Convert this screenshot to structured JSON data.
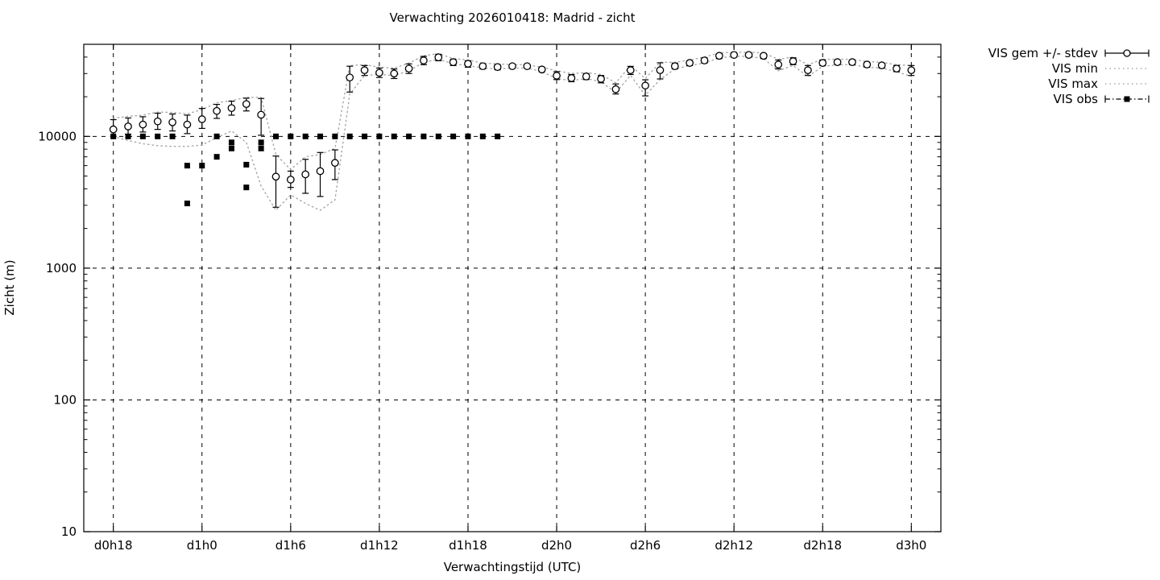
{
  "title": "Verwachting 2026010418: Madrid - zicht",
  "axes": {
    "xlabel": "Verwachtingstijd (UTC)",
    "ylabel": "Zicht (m)"
  },
  "legend": {
    "items": [
      {
        "label": "VIS gem +/- stdev",
        "sample": "errorbar-circle"
      },
      {
        "label": "VIS min",
        "sample": "dotted-line"
      },
      {
        "label": "VIS max",
        "sample": "dotted-line"
      },
      {
        "label": "VIS obs",
        "sample": "errorbar-square"
      }
    ]
  },
  "colors": {
    "foreground": "#000000",
    "minmax_dotted": "#a8a8a8",
    "background": "#ffffff"
  },
  "chart_data": {
    "type": "line",
    "title": "Verwachting 2026010418: Madrid - zicht",
    "xlabel": "Verwachtingstijd (UTC)",
    "ylabel": "Zicht (m)",
    "yscale": "log",
    "grid": true,
    "legend_position": "outside-top-right",
    "x_unit": "hours after d0h18",
    "xlim": [
      -2,
      56
    ],
    "ylim": [
      10,
      50000
    ],
    "x_ticks": [
      {
        "t": 0,
        "label": "d0h18"
      },
      {
        "t": 6,
        "label": "d1h0"
      },
      {
        "t": 12,
        "label": "d1h6"
      },
      {
        "t": 18,
        "label": "d1h12"
      },
      {
        "t": 24,
        "label": "d1h18"
      },
      {
        "t": 30,
        "label": "d2h0"
      },
      {
        "t": 36,
        "label": "d2h6"
      },
      {
        "t": 42,
        "label": "d2h12"
      },
      {
        "t": 48,
        "label": "d2h18"
      },
      {
        "t": 54,
        "label": "d3h0"
      }
    ],
    "y_ticks": [
      10,
      100,
      1000,
      10000
    ],
    "series": [
      {
        "name": "VIS gem +/- stdev",
        "style": "errorbar-circle",
        "t_start": 0,
        "t_step": 1,
        "mean": [
          11300,
          11900,
          12300,
          13000,
          12800,
          12300,
          13500,
          15600,
          16400,
          17600,
          14600,
          4950,
          4700,
          5150,
          5450,
          6300,
          28000,
          31800,
          30400,
          30000,
          32700,
          37700,
          39800,
          36600,
          35600,
          34100,
          33600,
          34100,
          34100,
          32200,
          28900,
          27700,
          28500,
          27300,
          22800,
          31800,
          24300,
          31800,
          34100,
          36100,
          37700,
          40900,
          41500,
          41500,
          40900,
          35100,
          37200,
          31800,
          36100,
          36600,
          36600,
          35100,
          34600,
          32700,
          31800
        ],
        "lo": [
          10000,
          10400,
          10800,
          11300,
          11000,
          10500,
          11500,
          13700,
          14500,
          15600,
          10200,
          2900,
          4100,
          3700,
          3500,
          4700,
          21700,
          29000,
          28000,
          27500,
          30000,
          35000,
          37500,
          34500,
          33500,
          32500,
          32000,
          33000,
          33000,
          31000,
          27000,
          26000,
          27000,
          25500,
          21000,
          29500,
          20300,
          27300,
          32500,
          34500,
          36000,
          39000,
          40000,
          40000,
          39000,
          32500,
          35000,
          29000,
          34500,
          35000,
          35000,
          33500,
          33000,
          31000,
          29000
        ],
        "hi": [
          13400,
          13800,
          14100,
          15000,
          14800,
          14500,
          16300,
          17500,
          18500,
          19500,
          19400,
          7100,
          5450,
          6700,
          7550,
          7900,
          34100,
          34500,
          33000,
          32500,
          35500,
          40500,
          42000,
          38500,
          37500,
          35500,
          35000,
          35000,
          35000,
          33500,
          31000,
          29500,
          30000,
          29000,
          25000,
          34000,
          26900,
          36200,
          36000,
          37500,
          39500,
          42500,
          43000,
          43000,
          42500,
          38000,
          39500,
          34500,
          38000,
          38000,
          38000,
          36500,
          36000,
          34500,
          34500
        ]
      },
      {
        "name": "VIS min",
        "style": "dotted",
        "t_start": 0,
        "t_step": 1,
        "values": [
          10000,
          9300,
          8800,
          8500,
          8400,
          8400,
          8600,
          9800,
          11000,
          9000,
          4200,
          2750,
          3600,
          3100,
          2750,
          3300,
          21000,
          29000,
          29500,
          29000,
          31500,
          36500,
          38500,
          35500,
          34500,
          33000,
          32500,
          33000,
          33000,
          31000,
          27500,
          26500,
          27500,
          26000,
          21500,
          29000,
          20500,
          27000,
          32500,
          34500,
          36000,
          39500,
          40500,
          40500,
          39000,
          31500,
          34500,
          28500,
          34000,
          35000,
          35000,
          33500,
          33000,
          31000,
          28500
        ]
      },
      {
        "name": "VIS max",
        "style": "dotted",
        "t_start": 0,
        "t_step": 1,
        "values": [
          13700,
          14200,
          14500,
          15300,
          15200,
          14800,
          16000,
          18000,
          18700,
          19800,
          19800,
          7300,
          5600,
          7000,
          7300,
          8100,
          34500,
          35000,
          33500,
          33000,
          36000,
          41000,
          42500,
          39000,
          38000,
          36000,
          35500,
          35000,
          35000,
          33500,
          31500,
          30000,
          30500,
          29500,
          25500,
          34500,
          27500,
          36500,
          36500,
          38000,
          40000,
          43000,
          43500,
          43500,
          43000,
          38500,
          40000,
          35000,
          38500,
          38500,
          38500,
          37000,
          36500,
          35000,
          34500
        ]
      },
      {
        "name": "VIS obs",
        "style": "filled-square",
        "points": [
          [
            0,
            10000
          ],
          [
            1,
            10000
          ],
          [
            2,
            10000
          ],
          [
            3,
            10000
          ],
          [
            4,
            10000
          ],
          [
            5,
            6000
          ],
          [
            5,
            3100
          ],
          [
            6,
            6000
          ],
          [
            7,
            10000
          ],
          [
            7,
            7000
          ],
          [
            8,
            9000
          ],
          [
            8,
            8100
          ],
          [
            9,
            6100
          ],
          [
            9,
            4100
          ],
          [
            10,
            9000
          ],
          [
            10,
            8100
          ],
          [
            11,
            10000
          ],
          [
            12,
            10000
          ],
          [
            13,
            10000
          ],
          [
            14,
            10000
          ],
          [
            15,
            10000
          ],
          [
            16,
            10000
          ],
          [
            17,
            10000
          ],
          [
            18,
            10000
          ],
          [
            19,
            10000
          ],
          [
            20,
            10000
          ],
          [
            21,
            10000
          ],
          [
            22,
            10000
          ],
          [
            23,
            10000
          ],
          [
            24,
            10000
          ],
          [
            25,
            10000
          ],
          [
            26,
            10000
          ]
        ]
      }
    ]
  }
}
